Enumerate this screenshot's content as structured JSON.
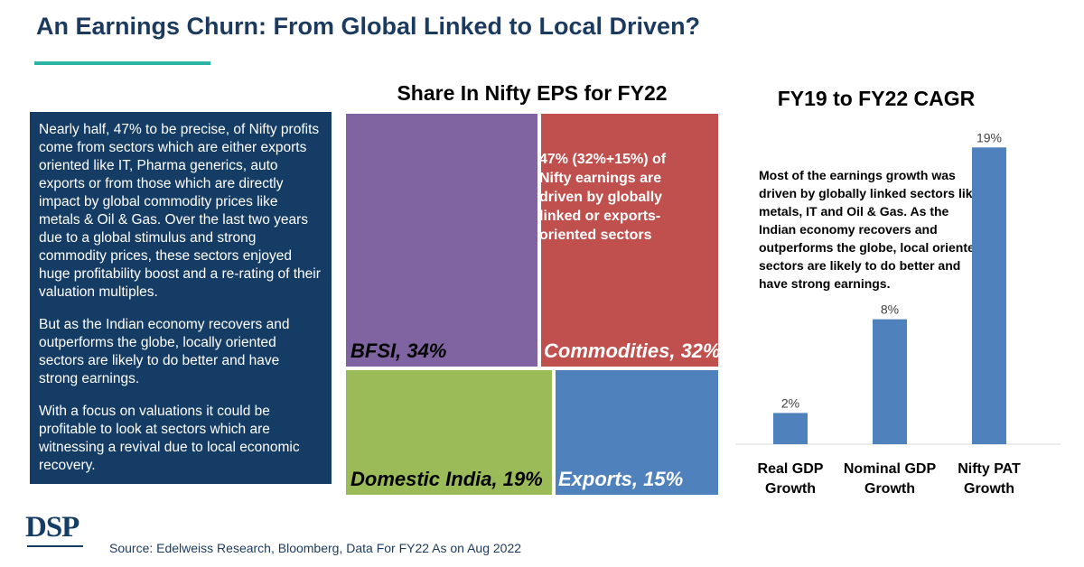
{
  "header": {
    "title": "An Earnings Churn: From Global Linked to Local Driven?"
  },
  "text_panel": {
    "paragraphs": [
      "Nearly half, 47% to be precise, of Nifty profits come from sectors which are either exports oriented like IT, Pharma generics, auto exports or from those which are directly impact by global commodity prices like metals & Oil & Gas. Over the last two years due to a global stimulus and strong commodity prices, these sectors enjoyed huge profitability boost and a re-rating of their valuation multiples.",
      "But as the Indian economy recovers and outperforms the globe, locally oriented sectors are likely to do better and have strong earnings.",
      "With a focus on valuations it could be profitable to look at sectors which are witnessing a revival due to local economic recovery."
    ]
  },
  "chart_data": [
    {
      "type": "treemap",
      "title": "Share In Nifty EPS for FY22",
      "items": [
        {
          "name": "BFSI",
          "value": 34,
          "label": "BFSI, 34%",
          "color": "#8064a2",
          "label_color": "#000000"
        },
        {
          "name": "Commodities",
          "value": 32,
          "label": "Commodities, 32%",
          "color": "#c0504d",
          "label_color": "#ffffff"
        },
        {
          "name": "Domestic India",
          "value": 19,
          "label": "Domestic India, 19%",
          "color": "#9bbb59",
          "label_color": "#000000"
        },
        {
          "name": "Exports",
          "value": 15,
          "label": "Exports, 15%",
          "color": "#4f81bd",
          "label_color": "#ffffff"
        }
      ],
      "annotation": "47% (32%+15%) of Nifty earnings are driven by globally linked or exports-oriented sectors"
    },
    {
      "type": "bar",
      "title": "FY19 to FY22 CAGR",
      "categories": [
        [
          "Real GDP",
          "Growth"
        ],
        [
          "Nominal GDP",
          "Growth"
        ],
        [
          "Nifty PAT",
          "Growth"
        ]
      ],
      "values": [
        2,
        8,
        19
      ],
      "value_labels": [
        "2%",
        "8%",
        "19%"
      ],
      "ylim": [
        0,
        20
      ],
      "bar_color": "#4f81bd",
      "annotation": "Most of the earnings growth was driven by globally linked sectors like metals, IT and Oil & Gas. As the Indian economy recovers and outperforms the globe, local oriented sectors are likely to do better and have strong earnings."
    }
  ],
  "footer": {
    "logo_text": "DSP",
    "source": "Source: Edelweiss Research, Bloomberg, Data For FY22 As on Aug 2022"
  }
}
